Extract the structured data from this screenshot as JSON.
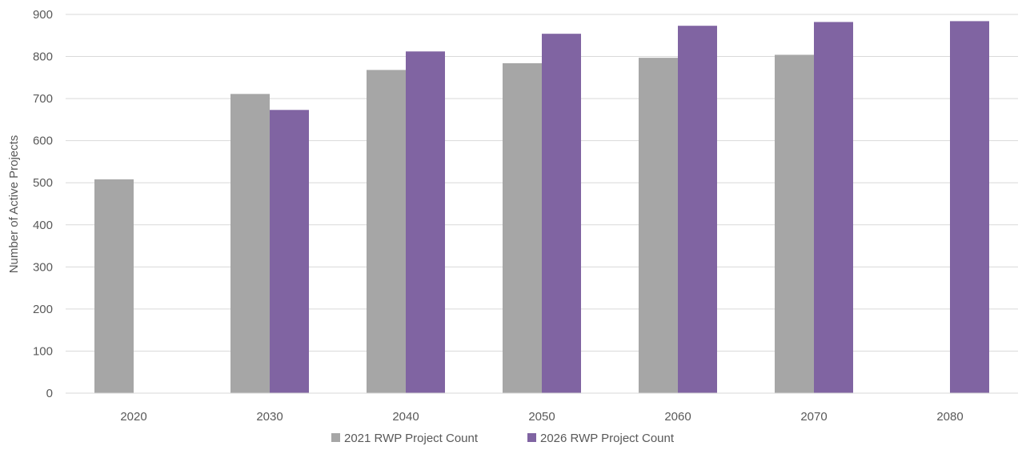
{
  "chart_data": {
    "type": "bar",
    "title": "",
    "xlabel": "",
    "ylabel": "Number of Active Projects",
    "categories": [
      "2020",
      "2030",
      "2040",
      "2050",
      "2060",
      "2070",
      "2080"
    ],
    "series": [
      {
        "name": "2021 RWP Project Count",
        "color": "#a6a6a6",
        "values": [
          508,
          711,
          768,
          784,
          797,
          804,
          null
        ]
      },
      {
        "name": "2026 RWP Project Count",
        "color": "#8064a2",
        "values": [
          null,
          673,
          812,
          854,
          873,
          882,
          884
        ]
      }
    ],
    "ylim": [
      0,
      900
    ],
    "yticks": [
      0,
      100,
      200,
      300,
      400,
      500,
      600,
      700,
      800,
      900
    ],
    "grid": true,
    "legend": "bottom-center"
  }
}
